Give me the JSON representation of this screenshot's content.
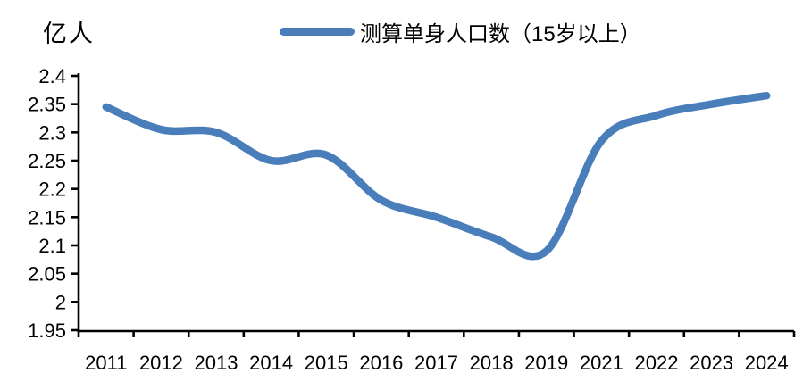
{
  "page": {
    "background": "#ffffff"
  },
  "chart": {
    "unit_label": "亿人",
    "legend": {
      "label": "测算单身人口数（15岁以上）",
      "line_color": "#4A7EBB"
    }
  },
  "chart_data": {
    "type": "line",
    "title": "",
    "ylabel": "亿人",
    "xlabel": "",
    "categories": [
      "2011",
      "2012",
      "2013",
      "2014",
      "2015",
      "2016",
      "2017",
      "2018",
      "2019",
      "2021",
      "2022",
      "2023",
      "2024"
    ],
    "series": [
      {
        "name": "测算单身人口数（15岁以上）",
        "values": [
          2.345,
          2.305,
          2.3,
          2.25,
          2.26,
          2.18,
          2.15,
          2.115,
          2.09,
          2.285,
          2.33,
          2.35,
          2.365
        ]
      }
    ],
    "ylim": [
      1.95,
      2.4
    ],
    "ytick_labels": [
      "2.4",
      "2.35",
      "2.3",
      "2.25",
      "2.2",
      "2.15",
      "2.1",
      "2.05",
      "2",
      "1.95"
    ],
    "grid": false,
    "smooth": true,
    "legend_position": "top",
    "line_color": "#4A7EBB",
    "axis_color": "#000000"
  }
}
